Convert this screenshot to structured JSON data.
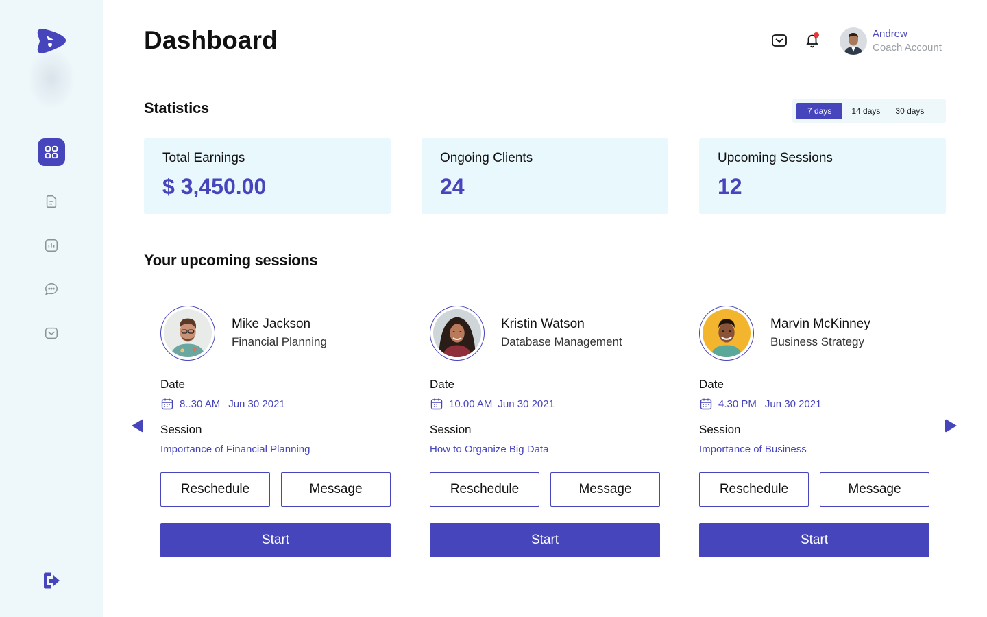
{
  "page": {
    "title": "Dashboard"
  },
  "header": {
    "user": {
      "name": "Andrew",
      "role": "Coach Account"
    }
  },
  "sidebar": {
    "items": [
      {
        "id": "dashboard",
        "icon": "grid-icon",
        "active": true
      },
      {
        "id": "documents",
        "icon": "document-icon",
        "active": false
      },
      {
        "id": "analytics",
        "icon": "bar-chart-icon",
        "active": false
      },
      {
        "id": "chat",
        "icon": "chat-bubble-icon",
        "active": false
      },
      {
        "id": "inbox",
        "icon": "inbox-icon",
        "active": false
      }
    ],
    "logout_icon": "logout-icon"
  },
  "statistics": {
    "title": "Statistics",
    "ranges": [
      "7 days",
      "14 days",
      "30 days"
    ],
    "selected_range": "7 days",
    "cards": [
      {
        "label": "Total Earnings",
        "value": "$ 3,450.00"
      },
      {
        "label": "Ongoing Clients",
        "value": "24"
      },
      {
        "label": "Upcoming Sessions",
        "value": "12"
      }
    ]
  },
  "sessions": {
    "title": "Your upcoming sessions",
    "items": [
      {
        "name": "Mike Jackson",
        "topic": "Financial Planning",
        "date_label": "Date",
        "time": "8..30 AM",
        "date": "Jun 30 2021",
        "session_label": "Session",
        "session_title": "Importance of Financial Planning",
        "reschedule": "Reschedule",
        "message": "Message",
        "start": "Start"
      },
      {
        "name": "Kristin Watson",
        "topic": "Database Management",
        "date_label": "Date",
        "time": "10.00 AM",
        "date": "Jun 30 2021",
        "session_label": "Session",
        "session_title": "How to Organize Big Data",
        "reschedule": "Reschedule",
        "message": "Message",
        "start": "Start"
      },
      {
        "name": "Marvin McKinney",
        "topic": "Business Strategy",
        "date_label": "Date",
        "time": "4.30 PM",
        "date": "Jun 30 2021",
        "session_label": "Session",
        "session_title": "Importance of Business",
        "reschedule": "Reschedule",
        "message": "Message",
        "start": "Start"
      }
    ]
  },
  "colors": {
    "accent": "#4745bb",
    "sidebar_bg": "#eef8fb",
    "card_bg": "#e8f8fd",
    "notification": "#e53935"
  }
}
